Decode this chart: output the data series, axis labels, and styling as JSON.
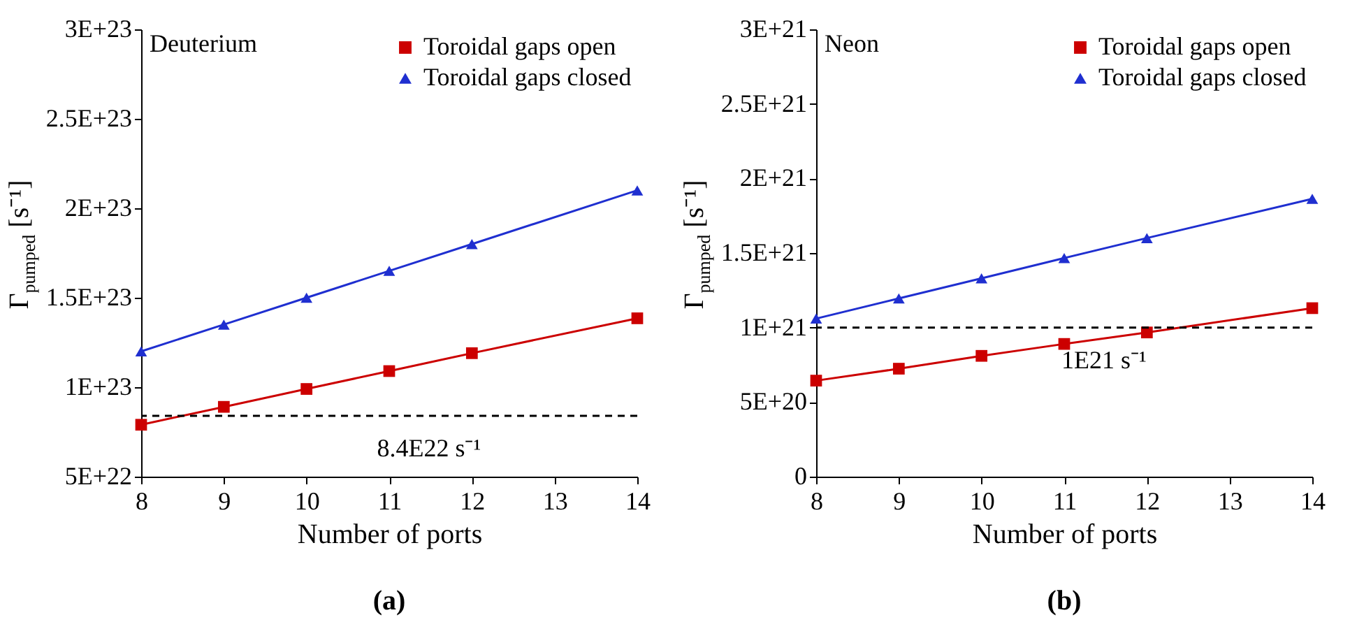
{
  "chart_data": [
    {
      "type": "line",
      "title": "(a)",
      "xlabel": "Number of ports",
      "ylabel": "Γ$_{pumped}$ [s⁻¹]",
      "annotations": [
        "Deuterium"
      ],
      "x": [
        8,
        9,
        10,
        11,
        12,
        14
      ],
      "series": [
        {
          "name": "Toroidal gaps open",
          "color": "#cc0000",
          "marker": "square",
          "values": [
            7.9e+22,
            8.9e+22,
            9.9e+22,
            1.09e+23,
            1.19e+23,
            1.385e+23
          ]
        },
        {
          "name": "Toroidal gaps closed",
          "color": "#1f2fd0",
          "marker": "triangle",
          "values": [
            1.2e+23,
            1.35e+23,
            1.5e+23,
            1.65e+23,
            1.8e+23,
            2.1e+23
          ]
        }
      ],
      "xlim": [
        8,
        14
      ],
      "xticks": [
        8,
        9,
        10,
        11,
        12,
        13,
        14
      ],
      "ylim": [
        5e+22,
        3e+23
      ],
      "yticks": [
        {
          "value": 5e+22,
          "label": "5E+22"
        },
        {
          "value": 1e+23,
          "label": "1E+23"
        },
        {
          "value": 1.5e+23,
          "label": "1.5E+23"
        },
        {
          "value": 2e+23,
          "label": "2E+23"
        },
        {
          "value": 2.5e+23,
          "label": "2.5E+23"
        },
        {
          "value": 3e+23,
          "label": "3E+23"
        }
      ],
      "ref_lines": [
        {
          "axis": "y",
          "value": 8.4e+22,
          "label": "8.4E22 s⁻¹",
          "color": "#000000",
          "line_style": "dashed"
        }
      ],
      "legend": "top right",
      "line_style": "solid"
    },
    {
      "type": "line",
      "title": "(b)",
      "xlabel": "Number of ports",
      "ylabel": "Γ$_{pumped}$ [s⁻¹]",
      "annotations": [
        "Neon"
      ],
      "x": [
        8,
        9,
        10,
        11,
        12,
        14
      ],
      "series": [
        {
          "name": "Toroidal gaps open",
          "color": "#cc0000",
          "marker": "square",
          "values": [
            6.44e+20,
            7.24e+20,
            8.1e+20,
            8.9e+20,
            9.67e+20,
            1.13e+21
          ]
        },
        {
          "name": "Toroidal gaps closed",
          "color": "#1f2fd0",
          "marker": "triangle",
          "values": [
            1.06e+21,
            1.195e+21,
            1.33e+21,
            1.466e+21,
            1.6e+21,
            1.863e+21
          ]
        }
      ],
      "xlim": [
        8,
        14
      ],
      "xticks": [
        8,
        9,
        10,
        11,
        12,
        13,
        14
      ],
      "ylim": [
        0,
        3e+21
      ],
      "yticks": [
        0,
        {
          "value": 5e+20,
          "label": "5E+20"
        },
        {
          "value": 1e+21,
          "label": "1E+21"
        },
        {
          "value": 1.5e+21,
          "label": "1.5E+21"
        },
        {
          "value": 2e+21,
          "label": "2E+21"
        },
        {
          "value": 2.5e+21,
          "label": "2.5E+21"
        },
        {
          "value": 3e+21,
          "label": "3E+21"
        }
      ],
      "ref_lines": [
        {
          "axis": "y",
          "value": 1e+21,
          "label": "1E21 s⁻¹",
          "color": "#000000",
          "line_style": "dashed"
        }
      ],
      "legend": "top right",
      "line_style": "solid"
    }
  ]
}
